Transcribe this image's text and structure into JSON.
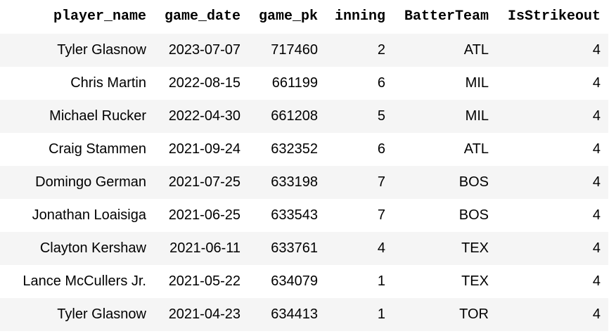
{
  "table": {
    "columns": [
      "player_name",
      "game_date",
      "game_pk",
      "inning",
      "BatterTeam",
      "IsStrikeout"
    ],
    "rows": [
      [
        "Tyler Glasnow",
        "2023-07-07",
        717460,
        2,
        "ATL",
        4
      ],
      [
        "Chris Martin",
        "2022-08-15",
        661199,
        6,
        "MIL",
        4
      ],
      [
        "Michael Rucker",
        "2022-04-30",
        661208,
        5,
        "MIL",
        4
      ],
      [
        "Craig Stammen",
        "2021-09-24",
        632352,
        6,
        "ATL",
        4
      ],
      [
        "Domingo German",
        "2021-07-25",
        633198,
        7,
        "BOS",
        4
      ],
      [
        "Jonathan Loaisiga",
        "2021-06-25",
        633543,
        7,
        "BOS",
        4
      ],
      [
        "Clayton Kershaw",
        "2021-06-11",
        633761,
        4,
        "TEX",
        4
      ],
      [
        "Lance McCullers Jr.",
        "2021-05-22",
        634079,
        1,
        "TEX",
        4
      ],
      [
        "Tyler Glasnow",
        "2021-04-23",
        634413,
        1,
        "TOR",
        4
      ]
    ]
  }
}
